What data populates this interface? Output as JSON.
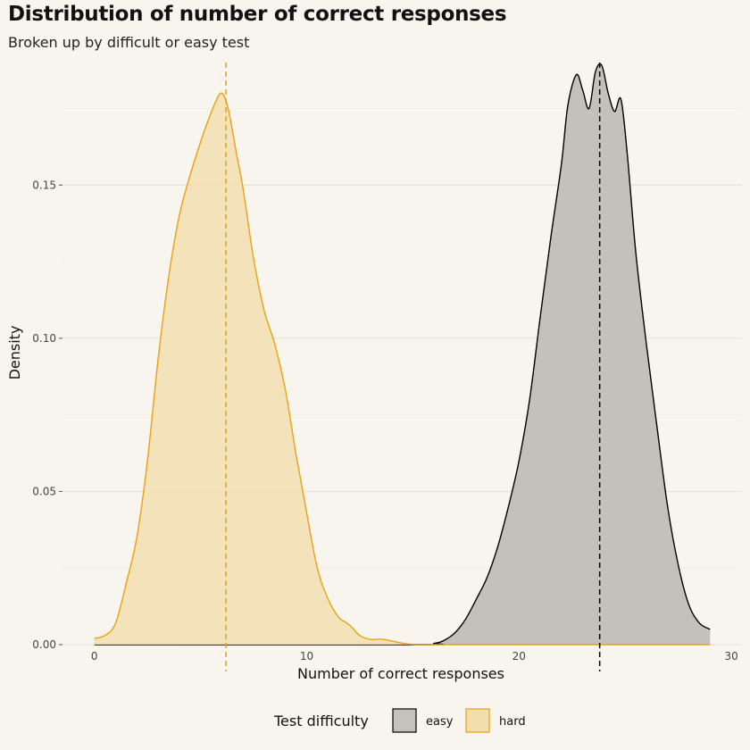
{
  "chart_data": {
    "type": "area",
    "title": "Distribution of number of correct responses",
    "subtitle": "Broken up by difficult or easy test",
    "xlabel": "Number of correct responses",
    "ylabel": "Density",
    "xlim": [
      -1.5,
      30.5
    ],
    "ylim": [
      0,
      0.19
    ],
    "x_ticks": [
      0,
      10,
      20,
      30
    ],
    "y_ticks": [
      0.0,
      0.05,
      0.1,
      0.15
    ],
    "y_tick_labels": [
      "0.00",
      "0.05",
      "0.10",
      "0.15"
    ],
    "x_tick_labels": [
      "0",
      "10",
      "20",
      "30"
    ],
    "grid": true,
    "legend": {
      "title": "Test difficulty",
      "placement": "bottom",
      "entries": [
        "easy",
        "hard"
      ]
    },
    "series": [
      {
        "name": "easy",
        "stroke": "#000000",
        "fill": "#b9b7b1",
        "mean": 23.8,
        "x": [
          0,
          15,
          16,
          16.5,
          17,
          17.5,
          18,
          18.5,
          19,
          19.5,
          20,
          20.5,
          21,
          21.5,
          22,
          22.3,
          22.7,
          23,
          23.3,
          23.6,
          23.9,
          24.2,
          24.5,
          24.8,
          25.1,
          25.5,
          26,
          26.5,
          27,
          27.5,
          28,
          28.5,
          29
        ],
        "values": [
          0,
          0,
          0.0004,
          0.0015,
          0.004,
          0.0085,
          0.015,
          0.022,
          0.032,
          0.045,
          0.06,
          0.08,
          0.107,
          0.133,
          0.157,
          0.176,
          0.186,
          0.181,
          0.175,
          0.187,
          0.189,
          0.18,
          0.174,
          0.178,
          0.16,
          0.128,
          0.098,
          0.071,
          0.045,
          0.026,
          0.013,
          0.007,
          0.005
        ]
      },
      {
        "name": "hard",
        "stroke": "#e8a214",
        "fill": "#f3deb0",
        "mean": 6.2,
        "x": [
          0,
          0.5,
          1,
          1.5,
          2,
          2.5,
          3,
          3.5,
          4,
          4.5,
          5,
          5.3,
          5.7,
          6,
          6.3,
          6.7,
          7,
          7.5,
          8,
          8.5,
          9,
          9.5,
          10,
          10.5,
          11,
          11.5,
          12,
          12.5,
          13,
          13.5,
          14,
          14.5,
          15,
          16,
          17,
          18,
          29
        ],
        "values": [
          0.002,
          0.003,
          0.007,
          0.02,
          0.035,
          0.06,
          0.093,
          0.12,
          0.14,
          0.153,
          0.164,
          0.17,
          0.177,
          0.18,
          0.175,
          0.16,
          0.149,
          0.126,
          0.109,
          0.098,
          0.083,
          0.062,
          0.043,
          0.025,
          0.015,
          0.009,
          0.0065,
          0.003,
          0.0017,
          0.0018,
          0.0012,
          0.0005,
          0.0001,
          0,
          0,
          0,
          0
        ]
      }
    ]
  }
}
